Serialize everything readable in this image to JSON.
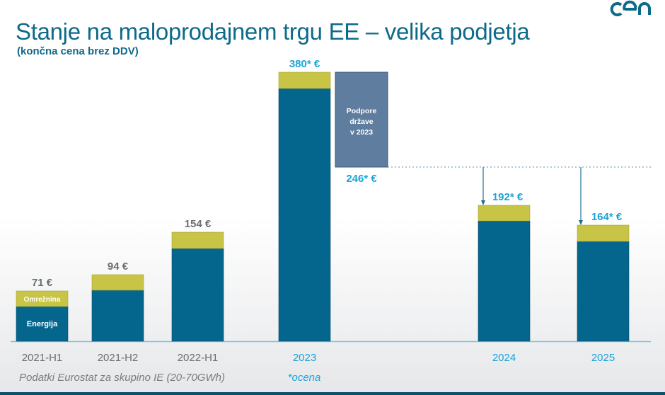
{
  "slide": {
    "title": "Stanje na maloprodajnem trgu EE – velika podjetja",
    "subtitle": "(končna cena brez DDV)",
    "logo_text": "cen",
    "footnote_source": "Podatki Eurostat za skupino IE (20-70GWh)",
    "footnote_estimate": "*ocena"
  },
  "chart_data": {
    "type": "bar",
    "stacked": true,
    "categories": [
      "2021-H1",
      "2021-H2",
      "2022-H1",
      "2023",
      "2024",
      "2025"
    ],
    "series": [
      {
        "name": "Energija",
        "values": [
          49,
          72,
          131,
          357,
          170,
          141
        ],
        "color": "#05668d"
      },
      {
        "name": "Omrežnina",
        "values": [
          22,
          22,
          23,
          23,
          22,
          23
        ],
        "color": "#c8c446"
      }
    ],
    "totals": [
      71,
      94,
      154,
      380,
      192,
      164
    ],
    "total_labels": [
      "71 €",
      "94 €",
      "154 €",
      "380* €",
      "192* €",
      "164* €"
    ],
    "estimated": [
      false,
      false,
      false,
      true,
      true,
      true
    ],
    "state_support": {
      "label_lines": [
        "Podpore",
        "države",
        "v 2023"
      ],
      "from": 380,
      "to": 246,
      "result_label": "246* €",
      "color": "#5f7d9e"
    },
    "reference_line": 246,
    "ylim": [
      0,
      400
    ],
    "grid": false,
    "label_colors": {
      "actual": "#6d6e70",
      "estimate": "#1aa3d9"
    }
  }
}
